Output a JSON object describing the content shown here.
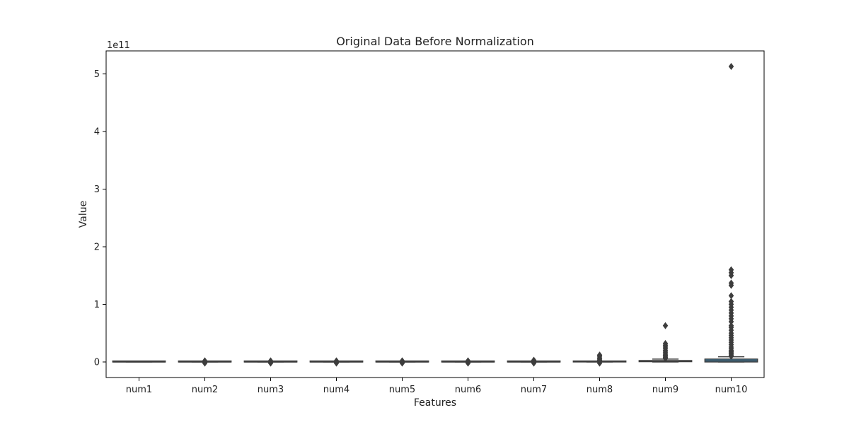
{
  "chart_data": {
    "type": "box",
    "title": "Original Data Before Normalization",
    "xlabel": "Features",
    "ylabel": "Value",
    "y_offset_label": "1e11",
    "y_scale": 100000000000.0,
    "ylim": [
      -0.27,
      5.4
    ],
    "yticks": [
      0,
      1,
      2,
      3,
      4,
      5
    ],
    "grid": false,
    "box_color": "#3b8fbf",
    "line_color": "#3d3d3d",
    "categories": [
      "num1",
      "num2",
      "num3",
      "num4",
      "num5",
      "num6",
      "num7",
      "num8",
      "num9",
      "num10"
    ],
    "boxes": [
      {
        "name": "num1",
        "q1": 0,
        "median": 0,
        "q3": 0.001,
        "whisker_low": 0,
        "whisker_high": 0.002,
        "outliers": []
      },
      {
        "name": "num2",
        "q1": 0,
        "median": 0,
        "q3": 0.002,
        "whisker_low": 0,
        "whisker_high": 0.004,
        "outliers": [
          -0.02,
          -0.01,
          0.01,
          0.02
        ]
      },
      {
        "name": "num3",
        "q1": 0,
        "median": 0,
        "q3": 0.002,
        "whisker_low": 0,
        "whisker_high": 0.004,
        "outliers": [
          -0.02,
          -0.01,
          0.01,
          0.02
        ]
      },
      {
        "name": "num4",
        "q1": 0,
        "median": 0,
        "q3": 0.002,
        "whisker_low": 0,
        "whisker_high": 0.004,
        "outliers": [
          -0.02,
          -0.01,
          0.01,
          0.02
        ]
      },
      {
        "name": "num5",
        "q1": 0,
        "median": 0,
        "q3": 0.002,
        "whisker_low": 0,
        "whisker_high": 0.004,
        "outliers": [
          -0.02,
          -0.01,
          0.01,
          0.02
        ]
      },
      {
        "name": "num6",
        "q1": 0,
        "median": 0,
        "q3": 0.002,
        "whisker_low": 0,
        "whisker_high": 0.004,
        "outliers": [
          -0.02,
          -0.01,
          0.01,
          0.02
        ]
      },
      {
        "name": "num7",
        "q1": 0,
        "median": 0,
        "q3": 0.002,
        "whisker_low": 0,
        "whisker_high": 0.004,
        "outliers": [
          -0.02,
          -0.01,
          0.01,
          0.02,
          0.03
        ]
      },
      {
        "name": "num8",
        "q1": 0,
        "median": 0.002,
        "q3": 0.005,
        "whisker_low": 0,
        "whisker_high": 0.01,
        "outliers": [
          -0.02,
          0.02,
          0.03,
          0.05,
          0.07,
          0.1,
          0.12
        ]
      },
      {
        "name": "num9",
        "q1": 0.005,
        "median": 0.01,
        "q3": 0.025,
        "whisker_low": 0,
        "whisker_high": 0.05,
        "outliers": [
          0.06,
          0.08,
          0.1,
          0.12,
          0.14,
          0.17,
          0.2,
          0.23,
          0.26,
          0.29,
          0.32,
          0.63
        ]
      },
      {
        "name": "num10",
        "q1": 0,
        "median": 0.02,
        "q3": 0.05,
        "whisker_low": 0,
        "whisker_high": 0.09,
        "outliers": [
          0.1,
          0.12,
          0.14,
          0.16,
          0.18,
          0.2,
          0.23,
          0.26,
          0.3,
          0.34,
          0.38,
          0.42,
          0.46,
          0.5,
          0.55,
          0.6,
          0.63,
          0.7,
          0.75,
          0.8,
          0.85,
          0.9,
          0.95,
          1.0,
          1.05,
          1.15,
          1.33,
          1.37,
          1.5,
          1.55,
          1.6,
          5.13
        ]
      }
    ]
  }
}
